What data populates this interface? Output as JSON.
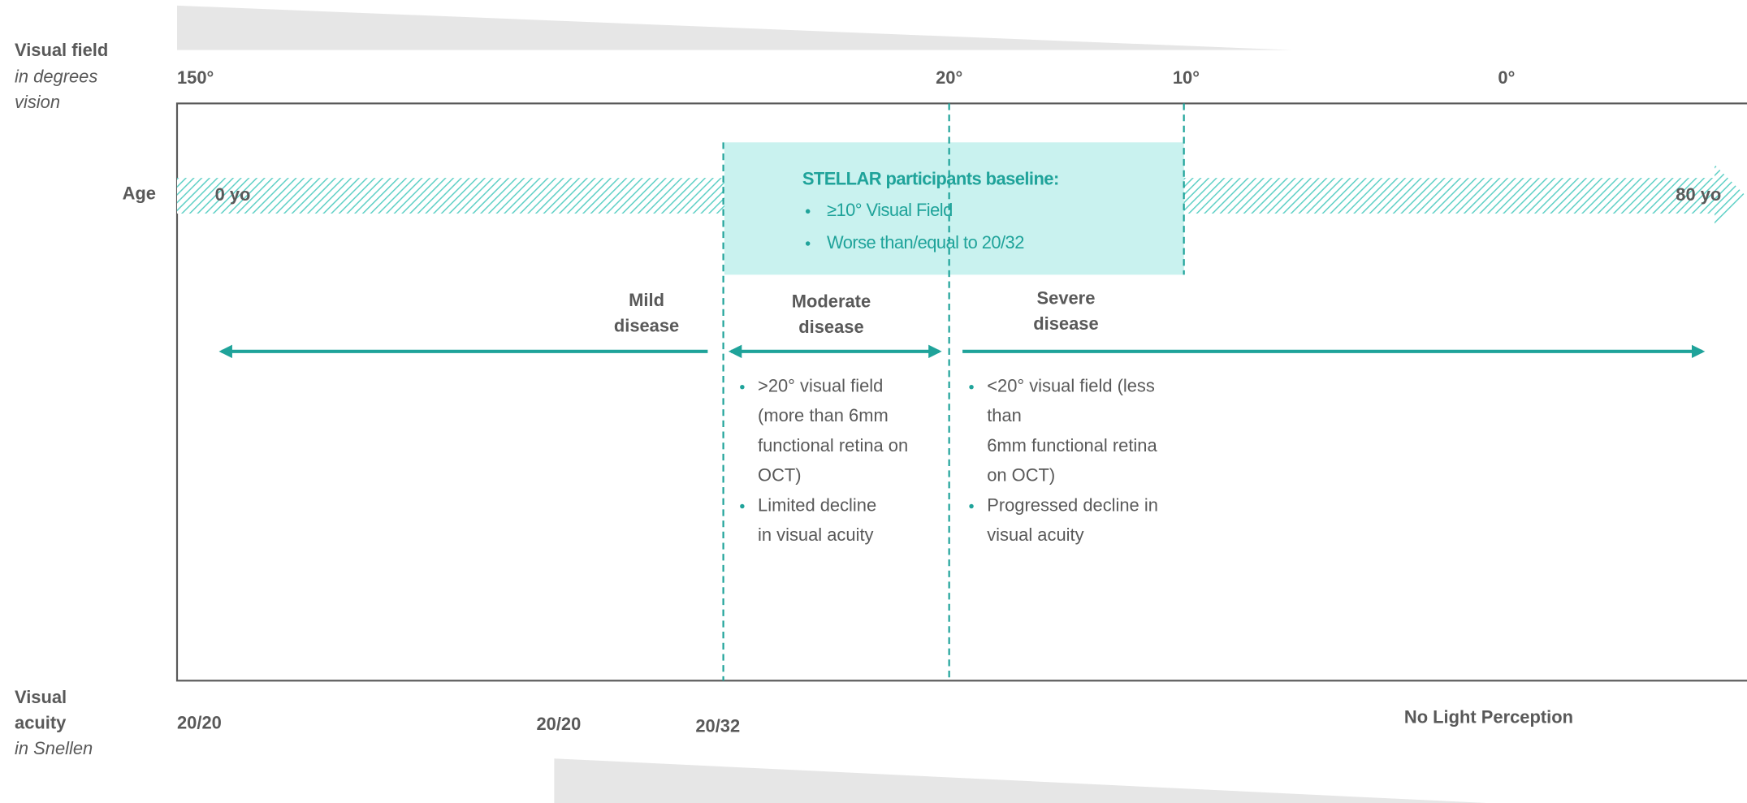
{
  "visual_field": {
    "label": "Visual field",
    "unit_lines": [
      "in degrees",
      "vision"
    ],
    "ticks": [
      "150°",
      "20°",
      "10°",
      "0°"
    ]
  },
  "age": {
    "label": "Age",
    "start": "0 yo",
    "end": "80 yo"
  },
  "baseline": {
    "title": "STELLAR participants baseline:",
    "bullets": [
      "≥10° Visual Field",
      "Worse than/equal to 20/32"
    ]
  },
  "stages": [
    {
      "label_lines": [
        "Mild",
        "disease"
      ]
    },
    {
      "label_lines": [
        "Moderate",
        "disease"
      ],
      "bullets": [
        [
          ">20° visual field",
          "(more than 6mm",
          "functional retina on",
          "OCT)"
        ],
        [
          "Limited decline",
          "in visual acuity"
        ]
      ]
    },
    {
      "label_lines": [
        "Severe",
        "disease"
      ],
      "bullets": [
        [
          "<20° visual field (less",
          "than",
          "6mm functional retina",
          "on OCT)"
        ],
        [
          "Progressed decline in",
          "visual acuity"
        ]
      ]
    }
  ],
  "visual_acuity": {
    "label_lines": [
      "Visual",
      "acuity"
    ],
    "unit": "in Snellen",
    "ticks": [
      "20/20",
      "20/20",
      "20/32",
      "No Light Perception"
    ]
  }
}
